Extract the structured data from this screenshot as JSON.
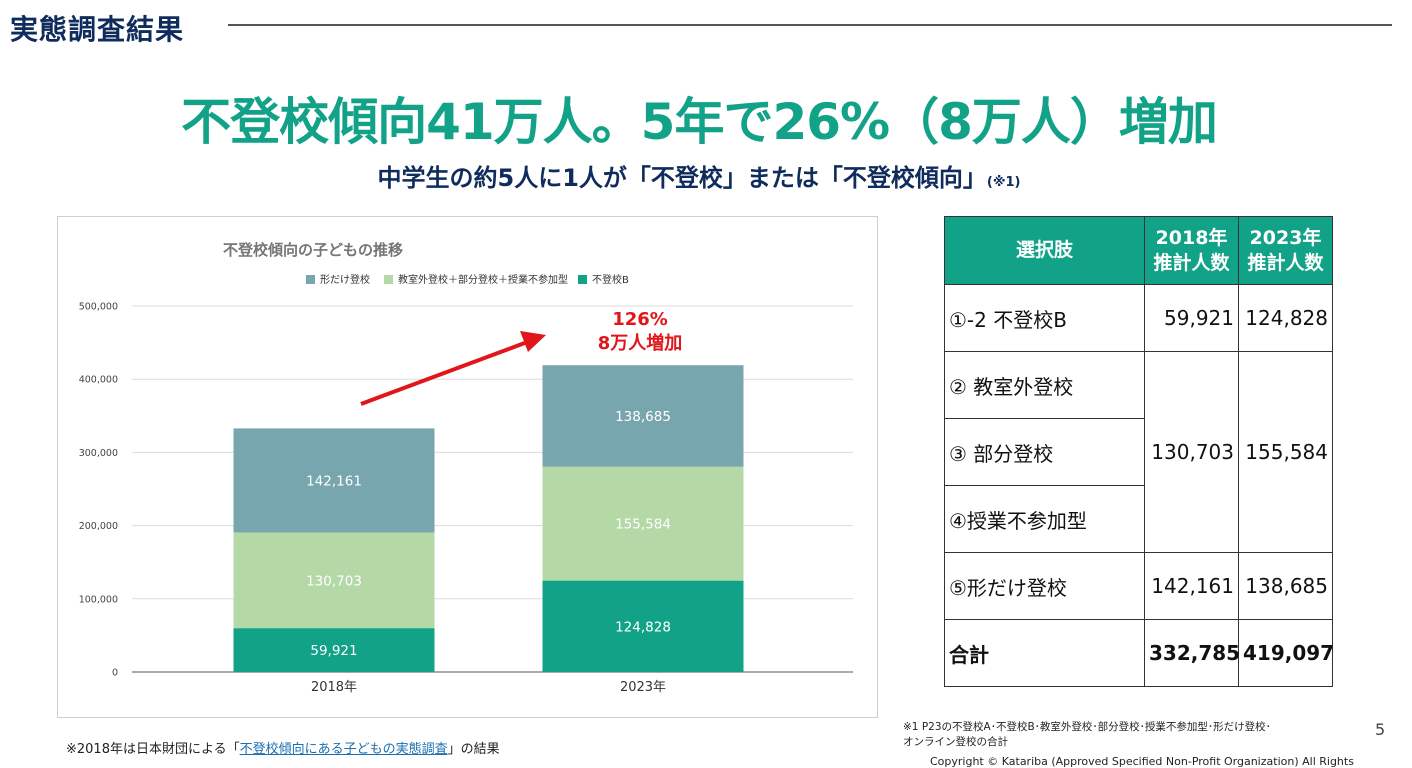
{
  "header": {
    "section_title": "実態調査結果"
  },
  "headline": "不登校傾向41万人。5年で26%（8万人）増加",
  "subhead": {
    "text": "中学生の約5人に1人が「不登校」または「不登校傾向」",
    "note": "(※1)"
  },
  "chart_data": {
    "type": "bar",
    "stacked": true,
    "title": "不登校傾向の子どもの推移",
    "categories": [
      "2018年",
      "2023年"
    ],
    "series": [
      {
        "name": "不登校B",
        "values": [
          59921,
          124828
        ],
        "color": "#12a287",
        "value_labels": [
          "59,921",
          "124,828"
        ]
      },
      {
        "name": "教室外登校＋部分登校＋授業不参加型",
        "values": [
          130703,
          155584
        ],
        "color": "#b5d8a7",
        "value_labels": [
          "130,703",
          "155,584"
        ]
      },
      {
        "name": "形だけ登校",
        "values": [
          142161,
          138685
        ],
        "color": "#78a6ae",
        "value_labels": [
          "142,161",
          "138,685"
        ]
      }
    ],
    "legend_order": [
      "形だけ登校",
      "教室外登校＋部分登校＋授業不参加型",
      "不登校B"
    ],
    "legend_position": "top",
    "ylim": [
      0,
      500000
    ],
    "yticks": [
      "0",
      "100,000",
      "200,000",
      "300,000",
      "400,000",
      "500,000"
    ],
    "ytick_values": [
      0,
      100000,
      200000,
      300000,
      400000,
      500000
    ],
    "grid": true,
    "annotation": {
      "line1": "126%",
      "line2": "8万人増加",
      "color": "#e0161b"
    }
  },
  "table": {
    "headers": [
      {
        "line1": "選択肢",
        "line2": ""
      },
      {
        "line1": "2018年",
        "line2": "推計人数"
      },
      {
        "line1": "2023年",
        "line2": "推計人数"
      }
    ],
    "rows": {
      "r1": {
        "option": "①-2 不登校B",
        "v2018": "59,921",
        "v2023": "124,828"
      },
      "r2": {
        "option": "② 教室外登校",
        "v2018": "130,703",
        "v2023": "155,584"
      },
      "r3": {
        "option": "③ 部分登校"
      },
      "r4": {
        "option": "④授業不参加型"
      },
      "r5": {
        "option": "⑤形だけ登校",
        "v2018": "142,161",
        "v2023": "138,685"
      },
      "total": {
        "option": "合計",
        "v2018": "332,785",
        "v2023": "419,097"
      }
    }
  },
  "footnote_left": {
    "prefix": "※2018年は日本財団による「",
    "link": "不登校傾向にある子どもの実態調査",
    "suffix": "」の結果"
  },
  "footnote_right": {
    "line1": "※1 P23の不登校A･不登校B･教室外登校･部分登校･授業不参加型･形だけ登校･",
    "line2": "オンライン登校の合計"
  },
  "page_number": "5",
  "copyright": "Copyright © Katariba (Approved Specified Non-Profit Organization) All Rights Reserved.",
  "colors": {
    "accent": "#12a287",
    "navy": "#0f2c5c",
    "red": "#e0161b"
  }
}
